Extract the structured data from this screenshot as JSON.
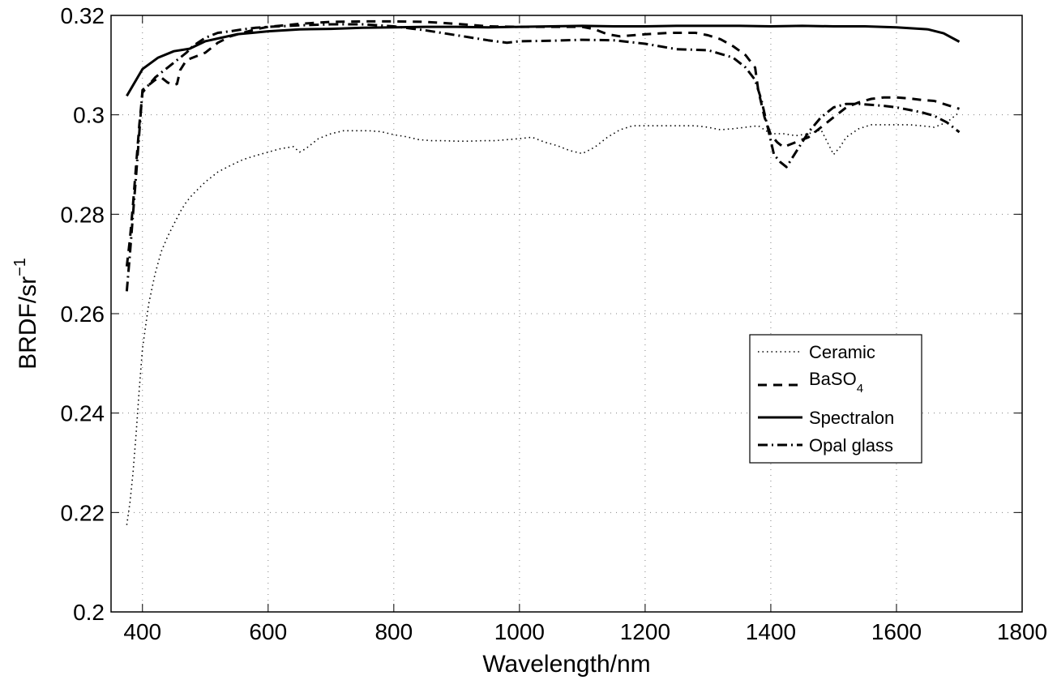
{
  "chart_data": {
    "type": "line",
    "title": "",
    "xlabel": "Wavelength/nm",
    "ylabel": "BRDF/sr",
    "ylabel_superscript": "−1",
    "xlim": [
      350,
      1800
    ],
    "ylim": [
      0.2,
      0.32
    ],
    "xticks": [
      400,
      600,
      800,
      1000,
      1200,
      1400,
      1600,
      1800
    ],
    "yticks": [
      0.2,
      0.22,
      0.24,
      0.26,
      0.28,
      0.3,
      0.32
    ],
    "xtick_labels": [
      "400",
      "600",
      "800",
      "1000",
      "1200",
      "1400",
      "1600",
      "1800"
    ],
    "ytick_labels": [
      "0.2",
      "0.22",
      "0.24",
      "0.26",
      "0.28",
      "0.3",
      "0.32"
    ],
    "grid": true,
    "legend_position": "center-right",
    "series": [
      {
        "name": "Ceramic",
        "style": "dotted",
        "x": [
          375,
          380,
          385,
          390,
          395,
          400,
          410,
          420,
          430,
          440,
          450,
          460,
          470,
          480,
          500,
          520,
          540,
          560,
          580,
          600,
          620,
          640,
          650,
          660,
          680,
          700,
          720,
          740,
          760,
          780,
          800,
          820,
          840,
          860,
          880,
          900,
          920,
          940,
          960,
          980,
          1000,
          1020,
          1040,
          1060,
          1080,
          1100,
          1120,
          1140,
          1160,
          1180,
          1200,
          1220,
          1240,
          1260,
          1280,
          1300,
          1320,
          1340,
          1360,
          1380,
          1400,
          1420,
          1440,
          1460,
          1480,
          1490,
          1500,
          1510,
          1520,
          1540,
          1560,
          1580,
          1600,
          1620,
          1640,
          1660,
          1680,
          1700
        ],
        "y": [
          0.2175,
          0.222,
          0.228,
          0.236,
          0.245,
          0.253,
          0.262,
          0.268,
          0.2725,
          0.2755,
          0.278,
          0.2805,
          0.2825,
          0.284,
          0.2865,
          0.2885,
          0.2898,
          0.291,
          0.2918,
          0.2925,
          0.2932,
          0.2936,
          0.2925,
          0.2932,
          0.2952,
          0.2962,
          0.2968,
          0.2968,
          0.2968,
          0.2966,
          0.296,
          0.2956,
          0.295,
          0.2948,
          0.2948,
          0.2947,
          0.2947,
          0.2948,
          0.2948,
          0.295,
          0.2952,
          0.2955,
          0.2945,
          0.2938,
          0.2928,
          0.2922,
          0.2935,
          0.2955,
          0.297,
          0.2978,
          0.2978,
          0.2978,
          0.2978,
          0.2978,
          0.2978,
          0.2975,
          0.297,
          0.2972,
          0.2975,
          0.2978,
          0.2962,
          0.2962,
          0.2958,
          0.2962,
          0.297,
          0.2945,
          0.292,
          0.2935,
          0.2955,
          0.2972,
          0.298,
          0.298,
          0.298,
          0.298,
          0.2978,
          0.2975,
          0.2985,
          0.3005
        ]
      },
      {
        "name": "BaSO4",
        "label_main": "BaSO",
        "label_sub": "4",
        "style": "dashed",
        "x": [
          375,
          380,
          385,
          390,
          395,
          400,
          410,
          420,
          430,
          440,
          450,
          455,
          460,
          470,
          480,
          500,
          520,
          540,
          560,
          580,
          600,
          650,
          700,
          750,
          800,
          850,
          900,
          950,
          1000,
          1050,
          1080,
          1100,
          1120,
          1140,
          1160,
          1200,
          1240,
          1280,
          1300,
          1320,
          1340,
          1360,
          1375,
          1380,
          1390,
          1400,
          1410,
          1420,
          1440,
          1460,
          1480,
          1500,
          1520,
          1540,
          1560,
          1580,
          1600,
          1620,
          1640,
          1660,
          1680,
          1700
        ],
        "y": [
          0.2695,
          0.275,
          0.282,
          0.29,
          0.298,
          0.3045,
          0.306,
          0.307,
          0.3075,
          0.3065,
          0.306,
          0.3062,
          0.309,
          0.311,
          0.3115,
          0.3125,
          0.3145,
          0.3158,
          0.3165,
          0.3172,
          0.3177,
          0.3183,
          0.3187,
          0.3188,
          0.3188,
          0.3187,
          0.3183,
          0.3178,
          0.3177,
          0.3177,
          0.3177,
          0.3177,
          0.3172,
          0.3162,
          0.3158,
          0.3162,
          0.3165,
          0.3165,
          0.316,
          0.3152,
          0.3138,
          0.312,
          0.3095,
          0.305,
          0.2995,
          0.296,
          0.2945,
          0.2935,
          0.2945,
          0.2955,
          0.2975,
          0.2995,
          0.3015,
          0.3025,
          0.3032,
          0.3035,
          0.3035,
          0.3033,
          0.303,
          0.3028,
          0.302,
          0.3012
        ]
      },
      {
        "name": "Spectralon",
        "style": "solid",
        "x": [
          375,
          400,
          425,
          450,
          475,
          500,
          525,
          550,
          575,
          600,
          650,
          700,
          750,
          800,
          850,
          900,
          950,
          1000,
          1050,
          1100,
          1150,
          1200,
          1250,
          1300,
          1350,
          1400,
          1450,
          1500,
          1550,
          1600,
          1650,
          1675,
          1700
        ],
        "y": [
          0.3038,
          0.3092,
          0.3115,
          0.3128,
          0.3133,
          0.3148,
          0.3155,
          0.3162,
          0.3165,
          0.3168,
          0.3172,
          0.3173,
          0.3175,
          0.3176,
          0.3177,
          0.3177,
          0.3176,
          0.3177,
          0.3178,
          0.3179,
          0.3178,
          0.3178,
          0.3179,
          0.3179,
          0.3179,
          0.3178,
          0.3179,
          0.3178,
          0.3178,
          0.3176,
          0.3172,
          0.3164,
          0.3147
        ]
      },
      {
        "name": "Opal glass",
        "style": "dashdot",
        "x": [
          375,
          380,
          385,
          390,
          395,
          400,
          410,
          420,
          430,
          440,
          450,
          460,
          470,
          480,
          500,
          520,
          540,
          560,
          580,
          600,
          650,
          700,
          750,
          800,
          850,
          900,
          950,
          980,
          1000,
          1050,
          1100,
          1150,
          1200,
          1250,
          1300,
          1340,
          1360,
          1375,
          1385,
          1395,
          1405,
          1415,
          1425,
          1440,
          1460,
          1480,
          1500,
          1520,
          1540,
          1560,
          1580,
          1600,
          1620,
          1640,
          1660,
          1680,
          1700
        ],
        "y": [
          0.2645,
          0.272,
          0.28,
          0.288,
          0.2965,
          0.305,
          0.306,
          0.3075,
          0.3085,
          0.3095,
          0.3105,
          0.3115,
          0.3125,
          0.3138,
          0.3155,
          0.3165,
          0.3168,
          0.3172,
          0.3175,
          0.3177,
          0.318,
          0.3182,
          0.3182,
          0.3178,
          0.317,
          0.316,
          0.315,
          0.3145,
          0.3148,
          0.3149,
          0.3151,
          0.315,
          0.3143,
          0.3132,
          0.313,
          0.3115,
          0.3095,
          0.307,
          0.303,
          0.2975,
          0.292,
          0.2905,
          0.2895,
          0.2925,
          0.2965,
          0.2995,
          0.3015,
          0.3022,
          0.3022,
          0.302,
          0.3018,
          0.3015,
          0.301,
          0.3005,
          0.2998,
          0.2985,
          0.2965
        ]
      }
    ]
  },
  "legend": {
    "items": [
      {
        "label": "Ceramic",
        "style": "dotted"
      },
      {
        "label": "BaSO",
        "sub": "4",
        "style": "dashed"
      },
      {
        "label": "Spectralon",
        "style": "solid"
      },
      {
        "label": "Opal glass",
        "style": "dashdot"
      }
    ]
  },
  "colors": {
    "line": "#000000",
    "grid": "#808080",
    "axes": "#000000",
    "background": "#ffffff"
  }
}
